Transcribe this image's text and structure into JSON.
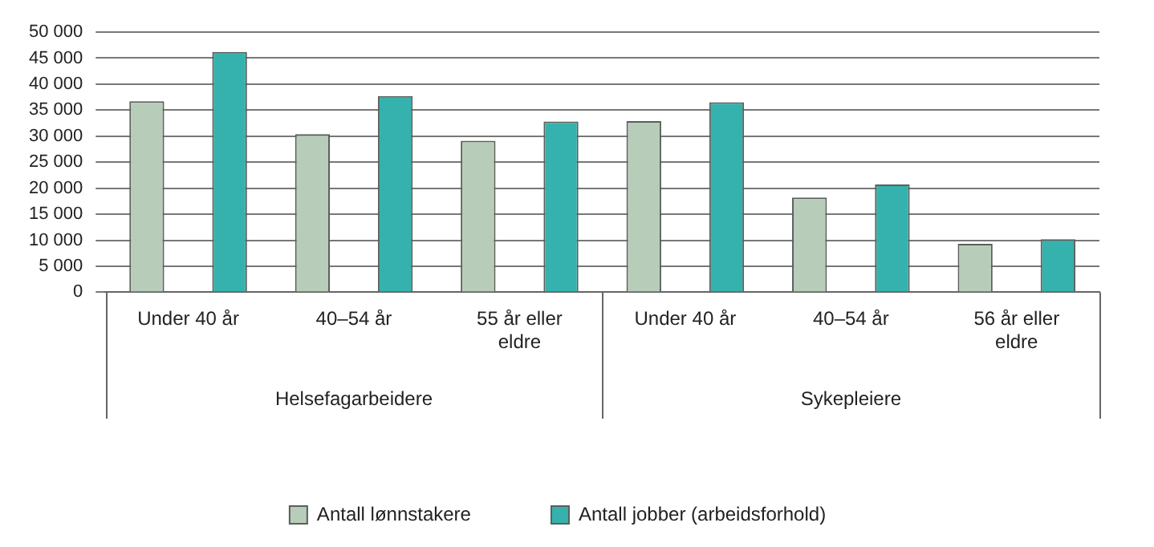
{
  "chart_data": {
    "type": "bar",
    "categories": [
      "Under 40 år",
      "40–54 år",
      "55 år eller eldre",
      "Under 40 år",
      "40–54 år",
      "56 år eller eldre"
    ],
    "series": [
      {
        "name": "Antall lønnstakere",
        "color": "#b8cdb9",
        "values": [
          36700,
          30400,
          29100,
          32900,
          18200,
          9300
        ]
      },
      {
        "name": "Antall jobber (arbeidsforhold)",
        "color": "#35b2ad",
        "values": [
          46200,
          37700,
          32800,
          36500,
          20700,
          10200
        ]
      }
    ],
    "annotations": [
      "Helsefagarbeidere",
      "Sykepleiere"
    ],
    "ylim": [
      0,
      50000
    ],
    "yticks": [
      0,
      {
        "value": 5000,
        "label": "5 000"
      },
      {
        "value": 10000,
        "label": "10 000"
      },
      {
        "value": 15000,
        "label": "15 000"
      },
      {
        "value": 20000,
        "label": "20 000"
      },
      {
        "value": 25000,
        "label": "25 000"
      },
      {
        "value": 30000,
        "label": "30 000"
      },
      {
        "value": 35000,
        "label": "35 000"
      },
      {
        "value": 40000,
        "label": "40 000"
      },
      {
        "value": 45000,
        "label": "45 000"
      },
      {
        "value": 50000,
        "label": "50 000"
      }
    ],
    "grid": "y",
    "legend": "bottom"
  }
}
